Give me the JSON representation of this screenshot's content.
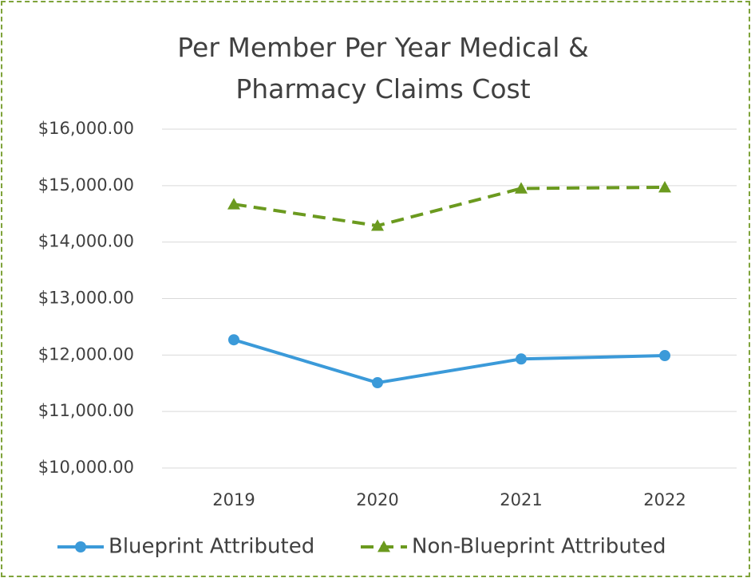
{
  "chart_data": {
    "type": "line",
    "title": "Per Member Per Year Medical & Pharmacy Claims Cost",
    "categories": [
      "2019",
      "2020",
      "2021",
      "2022"
    ],
    "series": [
      {
        "name": "Blueprint Attributed",
        "color": "#3b9ad9",
        "values": [
          12270,
          11510,
          11930,
          11990
        ]
      },
      {
        "name": "Non-Blueprint Attributed",
        "color": "#6b9a1f",
        "values": [
          14670,
          14290,
          14950,
          14970
        ]
      }
    ],
    "ylim": [
      10000,
      16000
    ],
    "yticks": [
      {
        "value": 10000,
        "label": "$10,000.00"
      },
      {
        "value": 11000,
        "label": "$11,000.00"
      },
      {
        "value": 12000,
        "label": "$12,000.00"
      },
      {
        "value": 13000,
        "label": "$13,000.00"
      },
      {
        "value": 14000,
        "label": "$14,000.00"
      },
      {
        "value": 15000,
        "label": "$15,000.00"
      },
      {
        "value": 16000,
        "label": "$16,000.00"
      }
    ],
    "grid": true,
    "legend": "bottom"
  }
}
